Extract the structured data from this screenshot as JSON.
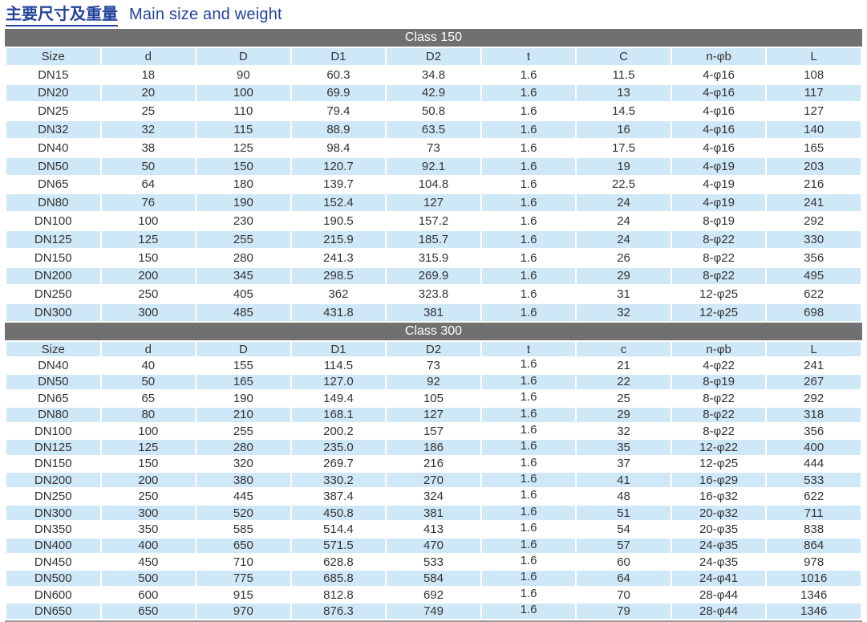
{
  "page_title": {
    "zh": "主要尺寸及重量",
    "en": "Main size and weight"
  },
  "colors": {
    "accent": "#24439b",
    "bar_gray": "#717070",
    "row_blue": "#cfe8f8"
  },
  "tables": [
    {
      "title": "Class 150",
      "columns": [
        "Size",
        "d",
        "D",
        "D1",
        "D2",
        "t",
        "C",
        "n-φb",
        "L"
      ],
      "rows": [
        [
          "DN15",
          "18",
          "90",
          "60.3",
          "34.8",
          "1.6",
          "11.5",
          "4-φ16",
          "108"
        ],
        [
          "DN20",
          "20",
          "100",
          "69.9",
          "42.9",
          "1.6",
          "13",
          "4-φ16",
          "117"
        ],
        [
          "DN25",
          "25",
          "110",
          "79.4",
          "50.8",
          "1.6",
          "14.5",
          "4-φ16",
          "127"
        ],
        [
          "DN32",
          "32",
          "115",
          "88.9",
          "63.5",
          "1.6",
          "16",
          "4-φ16",
          "140"
        ],
        [
          "DN40",
          "38",
          "125",
          "98.4",
          "73",
          "1.6",
          "17.5",
          "4-φ16",
          "165"
        ],
        [
          "DN50",
          "50",
          "150",
          "120.7",
          "92.1",
          "1.6",
          "19",
          "4-φ19",
          "203"
        ],
        [
          "DN65",
          "64",
          "180",
          "139.7",
          "104.8",
          "1.6",
          "22.5",
          "4-φ19",
          "216"
        ],
        [
          "DN80",
          "76",
          "190",
          "152.4",
          "127",
          "1.6",
          "24",
          "4-φ19",
          "241"
        ],
        [
          "DN100",
          "100",
          "230",
          "190.5",
          "157.2",
          "1.6",
          "24",
          "8-φ19",
          "292"
        ],
        [
          "DN125",
          "125",
          "255",
          "215.9",
          "185.7",
          "1.6",
          "24",
          "8-φ22",
          "330"
        ],
        [
          "DN150",
          "150",
          "280",
          "241.3",
          "315.9",
          "1.6",
          "26",
          "8-φ22",
          "356"
        ],
        [
          "DN200",
          "200",
          "345",
          "298.5",
          "269.9",
          "1.6",
          "29",
          "8-φ22",
          "495"
        ],
        [
          "DN250",
          "250",
          "405",
          "362",
          "323.8",
          "1.6",
          "31",
          "12-φ25",
          "622"
        ],
        [
          "DN300",
          "300",
          "485",
          "431.8",
          "381",
          "1.6",
          "32",
          "12-φ25",
          "698"
        ]
      ]
    },
    {
      "title": "Class 300",
      "columns": [
        "Size",
        "d",
        "D",
        "D1",
        "D2",
        "t",
        "c",
        "n-φb",
        "L"
      ],
      "rows": [
        [
          "DN40",
          "40",
          "155",
          "114.5",
          "73",
          "1.6",
          "21",
          "4-φ22",
          "241"
        ],
        [
          "DN50",
          "50",
          "165",
          "127.0",
          "92",
          "1.6",
          "22",
          "8-φ19",
          "267"
        ],
        [
          "DN65",
          "65",
          "190",
          "149.4",
          "105",
          "1.6",
          "25",
          "8-φ22",
          "292"
        ],
        [
          "DN80",
          "80",
          "210",
          "168.1",
          "127",
          "1.6",
          "29",
          "8-φ22",
          "318"
        ],
        [
          "DN100",
          "100",
          "255",
          "200.2",
          "157",
          "1.6",
          "32",
          "8-φ22",
          "356"
        ],
        [
          "DN125",
          "125",
          "280",
          "235.0",
          "186",
          "1.6",
          "35",
          "12-φ22",
          "400"
        ],
        [
          "DN150",
          "150",
          "320",
          "269.7",
          "216",
          "1.6",
          "37",
          "12-φ25",
          "444"
        ],
        [
          "DN200",
          "200",
          "380",
          "330.2",
          "270",
          "1.6",
          "41",
          "16-φ29",
          "533"
        ],
        [
          "DN250",
          "250",
          "445",
          "387.4",
          "324",
          "1.6",
          "48",
          "16-φ32",
          "622"
        ],
        [
          "DN300",
          "300",
          "520",
          "450.8",
          "381",
          "1.6",
          "51",
          "20-φ32",
          "711"
        ],
        [
          "DN350",
          "350",
          "585",
          "514.4",
          "413",
          "1.6",
          "54",
          "20-φ35",
          "838"
        ],
        [
          "DN400",
          "400",
          "650",
          "571.5",
          "470",
          "1.6",
          "57",
          "24-φ35",
          "864"
        ],
        [
          "DN450",
          "450",
          "710",
          "628.8",
          "533",
          "1.6",
          "60",
          "24-φ35",
          "978"
        ],
        [
          "DN500",
          "500",
          "775",
          "685.8",
          "584",
          "1.6",
          "64",
          "24-φ41",
          "1016"
        ],
        [
          "DN600",
          "600",
          "915",
          "812.8",
          "692",
          "1.6",
          "70",
          "28-φ44",
          "1346"
        ],
        [
          "DN650",
          "650",
          "970",
          "876.3",
          "749",
          "1.6",
          "79",
          "28-φ44",
          "1346"
        ]
      ]
    }
  ]
}
